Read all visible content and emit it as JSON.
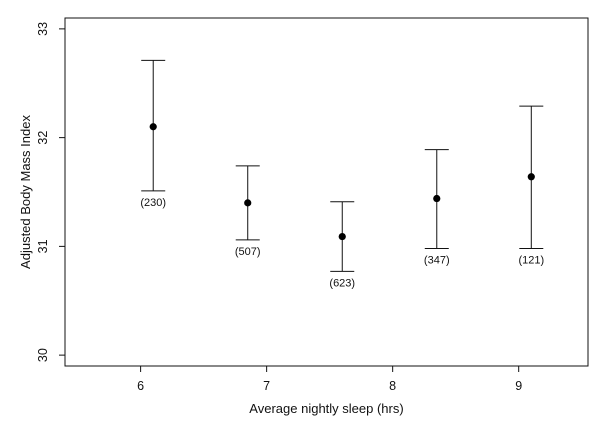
{
  "chart_data": {
    "type": "scatter",
    "title": "",
    "xlabel": "Average nightly sleep (hrs)",
    "ylabel": "Adjusted Body Mass Index",
    "xlim": [
      5.4,
      9.55
    ],
    "ylim": [
      29.9,
      33.1
    ],
    "x_ticks": [
      6,
      7,
      8,
      9
    ],
    "y_ticks": [
      30,
      31,
      32,
      33
    ],
    "grid": false,
    "legend": "none",
    "points": [
      {
        "x": 6.1,
        "y": 32.1,
        "lower": 31.51,
        "upper": 32.71,
        "n_label": "(230)"
      },
      {
        "x": 6.85,
        "y": 31.4,
        "lower": 31.06,
        "upper": 31.74,
        "n_label": "(507)"
      },
      {
        "x": 7.6,
        "y": 31.09,
        "lower": 30.77,
        "upper": 31.41,
        "n_label": "(623)"
      },
      {
        "x": 8.35,
        "y": 31.44,
        "lower": 30.98,
        "upper": 31.89,
        "n_label": "(347)"
      },
      {
        "x": 9.1,
        "y": 31.64,
        "lower": 30.98,
        "upper": 32.29,
        "n_label": "(121)"
      }
    ]
  }
}
